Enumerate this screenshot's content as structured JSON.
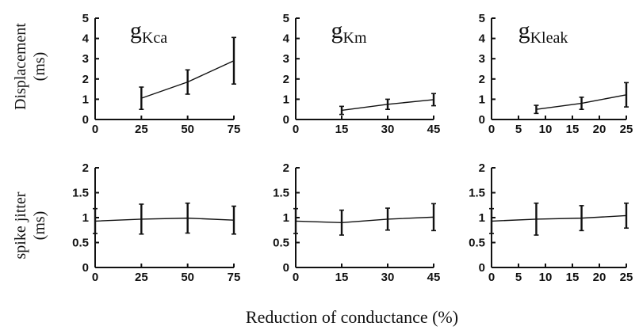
{
  "figure": {
    "ylabels": {
      "top": [
        "Displacement",
        "(ms)"
      ],
      "bottom": [
        "spike jitter",
        "(ms)"
      ]
    },
    "xlabel": "Reduction of conductance (%)"
  },
  "chart_data": [
    {
      "type": "line",
      "title_main": "g",
      "title_sub": "Kca",
      "row": "top",
      "col": 0,
      "x": [
        25,
        50,
        75
      ],
      "y": [
        1.05,
        1.85,
        2.9
      ],
      "err": [
        0.55,
        0.6,
        1.15
      ],
      "xlim": [
        0,
        75
      ],
      "xticks": [
        0,
        25,
        50,
        75
      ],
      "ylim": [
        0,
        5
      ],
      "yticks": [
        0,
        1,
        2,
        3,
        4,
        5
      ]
    },
    {
      "type": "line",
      "title_main": "g",
      "title_sub": "Km",
      "row": "top",
      "col": 1,
      "x": [
        15,
        30,
        45
      ],
      "y": [
        0.45,
        0.75,
        0.98
      ],
      "err": [
        0.2,
        0.25,
        0.3
      ],
      "xlim": [
        0,
        45
      ],
      "xticks": [
        0,
        15,
        30,
        45
      ],
      "ylim": [
        0,
        5
      ],
      "yticks": [
        0,
        1,
        2,
        3,
        4,
        5
      ]
    },
    {
      "type": "line",
      "title_main": "g",
      "title_sub": "Kleak",
      "row": "top",
      "col": 2,
      "x": [
        8.3,
        16.7,
        25
      ],
      "y": [
        0.5,
        0.8,
        1.22
      ],
      "err": [
        0.2,
        0.3,
        0.6
      ],
      "xlim": [
        0,
        25
      ],
      "xticks": [
        0,
        5,
        10,
        15,
        20,
        25
      ],
      "ylim": [
        0,
        5
      ],
      "yticks": [
        0,
        1,
        2,
        3,
        4,
        5
      ]
    },
    {
      "type": "line",
      "title_main": "",
      "title_sub": "",
      "row": "bottom",
      "col": 0,
      "x": [
        0,
        25,
        50,
        75
      ],
      "y": [
        0.93,
        0.97,
        0.99,
        0.95
      ],
      "err": [
        0.25,
        0.3,
        0.3,
        0.28
      ],
      "xlim": [
        0,
        75
      ],
      "xticks": [
        0,
        25,
        50,
        75
      ],
      "ylim": [
        0,
        2
      ],
      "yticks": [
        0,
        0.5,
        1,
        1.5,
        2
      ],
      "yticklabels": [
        "0",
        "0.5",
        "1",
        "1.5",
        "2"
      ]
    },
    {
      "type": "line",
      "title_main": "",
      "title_sub": "",
      "row": "bottom",
      "col": 1,
      "x": [
        0,
        15,
        30,
        45
      ],
      "y": [
        0.93,
        0.9,
        0.97,
        1.01
      ],
      "err": [
        0.25,
        0.25,
        0.22,
        0.27
      ],
      "xlim": [
        0,
        45
      ],
      "xticks": [
        0,
        15,
        30,
        45
      ],
      "ylim": [
        0,
        2
      ],
      "yticks": [
        0,
        0.5,
        1,
        1.5,
        2
      ],
      "yticklabels": [
        "0",
        "0.5",
        "1",
        "1.5",
        "2"
      ]
    },
    {
      "type": "line",
      "title_main": "",
      "title_sub": "",
      "row": "bottom",
      "col": 2,
      "x": [
        0,
        8.3,
        16.7,
        25
      ],
      "y": [
        0.93,
        0.97,
        0.99,
        1.04
      ],
      "err": [
        0.25,
        0.32,
        0.25,
        0.25
      ],
      "xlim": [
        0,
        25
      ],
      "xticks": [
        0,
        5,
        10,
        15,
        20,
        25
      ],
      "ylim": [
        0,
        2
      ],
      "yticks": [
        0,
        0.5,
        1,
        1.5,
        2
      ],
      "yticklabels": [
        "0",
        "0.5",
        "1",
        "1.5",
        "2"
      ]
    }
  ]
}
